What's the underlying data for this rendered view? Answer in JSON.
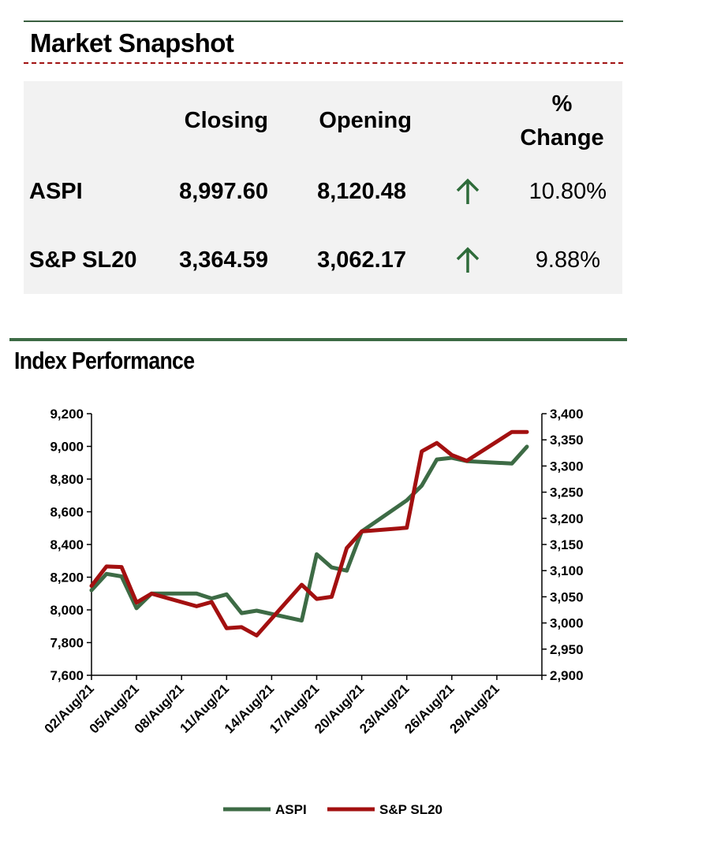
{
  "snapshot": {
    "title": "Market Snapshot",
    "headers": {
      "closing": "Closing",
      "opening": "Opening",
      "pct_line1": "%",
      "pct_line2": "Change"
    },
    "rows": [
      {
        "name": "ASPI",
        "closing": "8,997.60",
        "opening": "8,120.48",
        "direction": "up",
        "change": "10.80%"
      },
      {
        "name": "S&P SL20",
        "closing": "3,364.59",
        "opening": "3,062.17",
        "direction": "up",
        "change": "9.88%"
      }
    ],
    "colors": {
      "up_arrow": "#2e6b3a",
      "panel_bg": "#f2f2f2",
      "dash_rule": "#a01010"
    }
  },
  "performance": {
    "title": "Index Performance"
  },
  "chart_data": {
    "type": "line",
    "title": "Index Performance",
    "x_tick_labels": [
      "02/Aug/21",
      "05/Aug/21",
      "08/Aug/21",
      "11/Aug/21",
      "14/Aug/21",
      "17/Aug/21",
      "20/Aug/21",
      "23/Aug/21",
      "26/Aug/21",
      "29/Aug/21"
    ],
    "x": [
      "02/Aug/21",
      "03/Aug/21",
      "04/Aug/21",
      "05/Aug/21",
      "06/Aug/21",
      "09/Aug/21",
      "10/Aug/21",
      "11/Aug/21",
      "12/Aug/21",
      "13/Aug/21",
      "16/Aug/21",
      "17/Aug/21",
      "18/Aug/21",
      "19/Aug/21",
      "20/Aug/21",
      "23/Aug/21",
      "24/Aug/21",
      "25/Aug/21",
      "26/Aug/21",
      "27/Aug/21",
      "30/Aug/21",
      "31/Aug/21"
    ],
    "x_day": [
      2,
      3,
      4,
      5,
      6,
      9,
      10,
      11,
      12,
      13,
      16,
      17,
      18,
      19,
      20,
      23,
      24,
      25,
      26,
      27,
      30,
      31
    ],
    "series": [
      {
        "name": "ASPI",
        "axis": "left",
        "color": "#3d6b45",
        "values": [
          8120,
          8220,
          8205,
          8010,
          8100,
          8100,
          8070,
          8095,
          7980,
          7995,
          7935,
          8340,
          8260,
          8240,
          8480,
          8670,
          8760,
          8920,
          8930,
          8910,
          8895,
          8998
        ]
      },
      {
        "name": "S&P SL20",
        "axis": "right",
        "color": "#a31010",
        "values": [
          3071,
          3108,
          3107,
          3039,
          3056,
          3032,
          3040,
          2990,
          2992,
          2976,
          3073,
          3046,
          3050,
          3143,
          3175,
          3182,
          3328,
          3344,
          3321,
          3310,
          3365,
          3365
        ]
      }
    ],
    "y_left": {
      "min": 7600,
      "max": 9200,
      "step": 200,
      "ticks": [
        "7,600",
        "7,800",
        "8,000",
        "8,200",
        "8,400",
        "8,600",
        "8,800",
        "9,000",
        "9,200"
      ]
    },
    "y_right": {
      "min": 2900,
      "max": 3400,
      "step": 50,
      "ticks": [
        "2,900",
        "2,950",
        "3,000",
        "3,050",
        "3,100",
        "3,150",
        "3,200",
        "3,250",
        "3,300",
        "3,350",
        "3,400"
      ]
    },
    "grid": false,
    "legend": "bottom-center"
  }
}
